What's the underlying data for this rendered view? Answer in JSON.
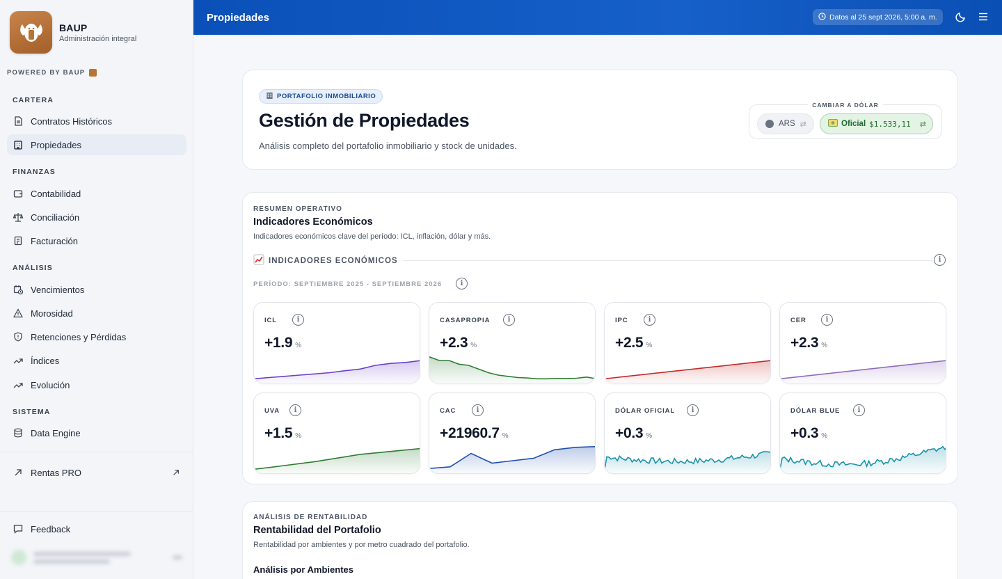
{
  "sidebar": {
    "brand_name": "BAUP",
    "brand_sub": "Administración integral",
    "powered": "POWERED BY BAUP",
    "sections": {
      "cartera": "CARTERA",
      "finanzas": "FINANZAS",
      "analisis": "ANÁLISIS",
      "sistema": "SISTEMA"
    },
    "items": {
      "contratos": "Contratos Históricos",
      "propiedades": "Propiedades",
      "contabilidad": "Contabilidad",
      "conciliacion": "Conciliación",
      "facturacion": "Facturación",
      "vencimientos": "Vencimientos",
      "morosidad": "Morosidad",
      "retenciones": "Retenciones y Pérdidas",
      "indices": "Índices",
      "evolucion": "Evolución",
      "data_engine": "Data Engine",
      "rentas_pro": "Rentas PRO",
      "feedback": "Feedback"
    }
  },
  "topbar": {
    "title": "Propiedades",
    "data_date": "Datos al 25 sept 2026, 5:00 a. m."
  },
  "hero": {
    "pill": "PORTAFOLIO INMOBILIARIO",
    "title": "Gestión de Propiedades",
    "subtitle": "Análisis completo del portafolio inmobiliario y stock de unidades.",
    "switch_label": "CAMBIAR A DÓLAR",
    "ars": "ARS",
    "usd_label": "Oficial",
    "usd_value": "$1.533,11"
  },
  "indicators": {
    "eyebrow": "RESUMEN OPERATIVO",
    "title": "Indicadores Económicos",
    "subtitle": "Indicadores económicos clave del período: ICL, inflación, dólar y más.",
    "header": "INDICADORES ECONÓMICOS",
    "periodo": "PERÍODO: SEPTIEMBRE 2025 - SEPTIEMBRE 2026",
    "unit": "%",
    "cards": [
      {
        "name": "ICL",
        "value": "+1.9",
        "color": "#6b3fc9"
      },
      {
        "name": "CASAPROPIA",
        "value": "+2.3",
        "color": "#2e7d32"
      },
      {
        "name": "IPC",
        "value": "+2.5",
        "color": "#c62828"
      },
      {
        "name": "CER",
        "value": "+2.3",
        "color": "#8e6bbf"
      },
      {
        "name": "UVA",
        "value": "+1.5",
        "color": "#2e7d32"
      },
      {
        "name": "CAC",
        "value": "+21960.7",
        "color": "#1e4fb0"
      },
      {
        "name": "DÓLAR OFICIAL",
        "value": "+0.3",
        "color": "#1a93a8"
      },
      {
        "name": "DÓLAR BLUE",
        "value": "+0.3",
        "color": "#1a93a8"
      }
    ]
  },
  "rentabilidad": {
    "eyebrow": "ANÁLISIS DE RENTABILIDAD",
    "title": "Rentabilidad del Portafolio",
    "subtitle": "Rentabilidad por ambientes y por metro cuadrado del portafolio.",
    "subsection": "Análisis por Ambientes"
  }
}
